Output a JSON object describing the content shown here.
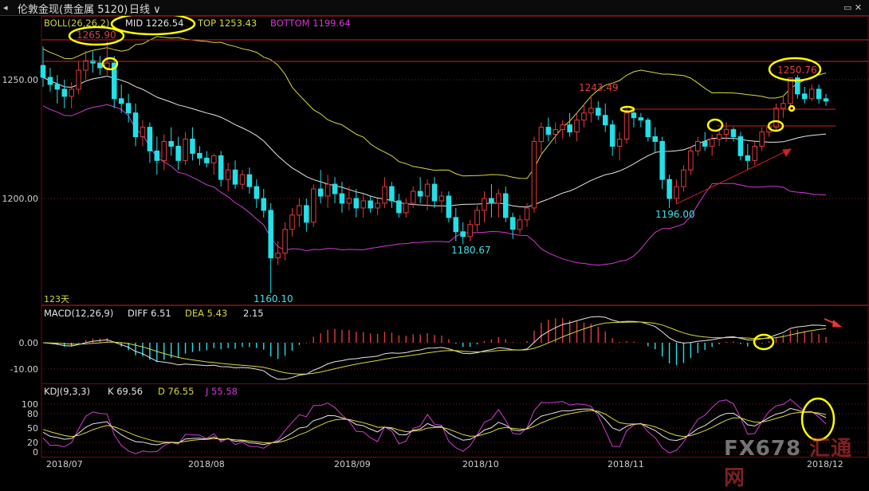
{
  "window": {
    "title": "伦敦金现(贵金属 5120)",
    "period": "日线",
    "icon_left": "arrow-icon",
    "icon_right": "window-controls-icon"
  },
  "colors": {
    "up": "#e23b3b",
    "down": "#22e0e8",
    "mid": "#e6e6e6",
    "top": "#d8d83a",
    "bottom": "#d23ad2",
    "grid": "#7a1f1f",
    "highlight": "#ffff00"
  },
  "boll_panel": {
    "legend": {
      "name": "BOLL(26,26,2)",
      "mid": "MID 1226.54",
      "top": "TOP 1253.43",
      "bottom": "BOTTOM 1199.64"
    },
    "yticks": [
      "1250.00",
      "1200.00"
    ],
    "days_label": "123天"
  },
  "macd_panel": {
    "legend": {
      "name": "MACD(12,26,9)",
      "diff": "DIFF 6.51",
      "dea": "DEA 5.43",
      "macd": "2.15"
    },
    "yticks": [
      "0.00",
      "-10.00"
    ]
  },
  "kdj_panel": {
    "legend": {
      "name": "KDJ(9,3,3)",
      "k": "K 69.56",
      "d": "D 76.55",
      "j": "J 55.58"
    },
    "yticks": [
      "100",
      "80",
      "50",
      "20",
      "0"
    ]
  },
  "xaxis": {
    "labels": [
      "2018/07",
      "2018/08",
      "2018/09",
      "2018/10",
      "2018/11",
      "2018/12"
    ]
  },
  "annotations": {
    "high_jul": "1265.90",
    "low_aug": "1160.10",
    "low_oct": "1180.67",
    "high_oct": "1243.49",
    "low_nov": "1196.00",
    "high_dec": "1250.76"
  },
  "watermark": {
    "brand": "FX678",
    "cn": "汇通网"
  },
  "chart_data": {
    "type": "candlestick",
    "symbol": "伦敦金现",
    "period": "日线",
    "candles_ohlc": [
      [
        1256,
        1264,
        1247,
        1251
      ],
      [
        1251,
        1255,
        1245,
        1248
      ],
      [
        1248,
        1252,
        1240,
        1246
      ],
      [
        1246,
        1250,
        1238,
        1243
      ],
      [
        1243,
        1249,
        1238,
        1246
      ],
      [
        1246,
        1258,
        1244,
        1254
      ],
      [
        1254,
        1262,
        1250,
        1258
      ],
      [
        1258,
        1262,
        1253,
        1257
      ],
      [
        1257,
        1260,
        1252,
        1255
      ],
      [
        1255,
        1265.9,
        1252,
        1257
      ],
      [
        1257,
        1260,
        1238,
        1242
      ],
      [
        1242,
        1248,
        1236,
        1240
      ],
      [
        1240,
        1244,
        1232,
        1236
      ],
      [
        1236,
        1240,
        1222,
        1226
      ],
      [
        1226,
        1233,
        1222,
        1230
      ],
      [
        1230,
        1232,
        1215,
        1220
      ],
      [
        1220,
        1226,
        1210,
        1216
      ],
      [
        1216,
        1227,
        1212,
        1224
      ],
      [
        1224,
        1230,
        1218,
        1222
      ],
      [
        1222,
        1226,
        1212,
        1216
      ],
      [
        1216,
        1228,
        1214,
        1225
      ],
      [
        1225,
        1230,
        1216,
        1219
      ],
      [
        1219,
        1222,
        1214,
        1217
      ],
      [
        1217,
        1220,
        1213,
        1215
      ],
      [
        1215,
        1219,
        1210,
        1218
      ],
      [
        1218,
        1220,
        1205,
        1208
      ],
      [
        1208,
        1215,
        1203,
        1212
      ],
      [
        1212,
        1216,
        1204,
        1206
      ],
      [
        1206,
        1212,
        1204,
        1210
      ],
      [
        1210,
        1213,
        1202,
        1205
      ],
      [
        1205,
        1208,
        1196,
        1200
      ],
      [
        1200,
        1204,
        1192,
        1195
      ],
      [
        1195,
        1198,
        1160.1,
        1175
      ],
      [
        1175,
        1182,
        1172,
        1177
      ],
      [
        1177,
        1190,
        1174,
        1187
      ],
      [
        1187,
        1196,
        1184,
        1193
      ],
      [
        1193,
        1200,
        1188,
        1197
      ],
      [
        1197,
        1200,
        1186,
        1190
      ],
      [
        1190,
        1206,
        1188,
        1204
      ],
      [
        1204,
        1212,
        1198,
        1201
      ],
      [
        1201,
        1210,
        1196,
        1206
      ],
      [
        1206,
        1209,
        1198,
        1202
      ],
      [
        1202,
        1207,
        1194,
        1198
      ],
      [
        1198,
        1205,
        1195,
        1200
      ],
      [
        1200,
        1204,
        1192,
        1196
      ],
      [
        1196,
        1202,
        1192,
        1199
      ],
      [
        1199,
        1201,
        1194,
        1196
      ],
      [
        1196,
        1200,
        1193,
        1198
      ],
      [
        1198,
        1209,
        1196,
        1205
      ],
      [
        1205,
        1207,
        1196,
        1199
      ],
      [
        1199,
        1202,
        1192,
        1194
      ],
      [
        1194,
        1200,
        1192,
        1198
      ],
      [
        1198,
        1205,
        1196,
        1203
      ],
      [
        1203,
        1209,
        1198,
        1201
      ],
      [
        1201,
        1208,
        1195,
        1206
      ],
      [
        1206,
        1209,
        1196,
        1199
      ],
      [
        1199,
        1203,
        1194,
        1201
      ],
      [
        1201,
        1203,
        1190,
        1192
      ],
      [
        1192,
        1196,
        1182,
        1186
      ],
      [
        1186,
        1190,
        1180.67,
        1184
      ],
      [
        1184,
        1191,
        1182,
        1189
      ],
      [
        1189,
        1197,
        1186,
        1195
      ],
      [
        1195,
        1203,
        1190,
        1200
      ],
      [
        1200,
        1206,
        1192,
        1198
      ],
      [
        1198,
        1204,
        1192,
        1202
      ],
      [
        1202,
        1205,
        1190,
        1192
      ],
      [
        1192,
        1194,
        1183,
        1187
      ],
      [
        1187,
        1193,
        1185,
        1191
      ],
      [
        1191,
        1198,
        1188,
        1196
      ],
      [
        1196,
        1226,
        1194,
        1224
      ],
      [
        1224,
        1232,
        1218,
        1230
      ],
      [
        1230,
        1234,
        1224,
        1227
      ],
      [
        1227,
        1232,
        1223,
        1229
      ],
      [
        1229,
        1233,
        1225,
        1231
      ],
      [
        1231,
        1236,
        1226,
        1228
      ],
      [
        1228,
        1236,
        1224,
        1233
      ],
      [
        1233,
        1240,
        1230,
        1236
      ],
      [
        1236,
        1243.49,
        1232,
        1238
      ],
      [
        1238,
        1241,
        1233,
        1235
      ],
      [
        1235,
        1240,
        1228,
        1231
      ],
      [
        1231,
        1233,
        1218,
        1222
      ],
      [
        1222,
        1228,
        1216,
        1225
      ],
      [
        1225,
        1239,
        1223,
        1236
      ],
      [
        1236,
        1238,
        1230,
        1234
      ],
      [
        1234,
        1236,
        1230,
        1233
      ],
      [
        1233,
        1234,
        1224,
        1226
      ],
      [
        1226,
        1230,
        1219,
        1224
      ],
      [
        1224,
        1226,
        1204,
        1208
      ],
      [
        1208,
        1210,
        1196,
        1200
      ],
      [
        1200,
        1208,
        1198,
        1205
      ],
      [
        1205,
        1214,
        1203,
        1212
      ],
      [
        1212,
        1222,
        1210,
        1220
      ],
      [
        1220,
        1226,
        1218,
        1224
      ],
      [
        1224,
        1228,
        1220,
        1222
      ],
      [
        1222,
        1227,
        1218,
        1225
      ],
      [
        1225,
        1229,
        1222,
        1227
      ],
      [
        1227,
        1232,
        1224,
        1229
      ],
      [
        1229,
        1230,
        1224,
        1226
      ],
      [
        1226,
        1228,
        1216,
        1218
      ],
      [
        1218,
        1223,
        1212,
        1216
      ],
      [
        1216,
        1224,
        1214,
        1222
      ],
      [
        1222,
        1230,
        1220,
        1228
      ],
      [
        1228,
        1232,
        1226,
        1230
      ],
      [
        1230,
        1240,
        1228,
        1238
      ],
      [
        1238,
        1243,
        1234,
        1240
      ],
      [
        1240,
        1248,
        1238,
        1250.76
      ],
      [
        1250.76,
        1252,
        1242,
        1244
      ],
      [
        1244,
        1247,
        1240,
        1242
      ],
      [
        1242,
        1248,
        1241,
        1246
      ],
      [
        1246,
        1248,
        1240,
        1242
      ],
      [
        1242,
        1244,
        1239,
        1241
      ]
    ],
    "boll_latest": {
      "mid": 1226.54,
      "top": 1253.43,
      "bottom": 1199.64
    },
    "macd_latest": {
      "diff": 6.51,
      "dea": 5.43,
      "macd": 2.15
    },
    "kdj_latest": {
      "k": 69.56,
      "d": 76.55,
      "j": 55.58
    },
    "price_range": [
      1155,
      1270
    ],
    "labels": {
      "high_jul": 1265.9,
      "low_aug": 1160.1,
      "low_oct": 1180.67,
      "high_oct": 1243.49,
      "low_nov": 1196.0,
      "high_dec": 1250.76
    },
    "x_labels": [
      "2018/07",
      "2018/08",
      "2018/09",
      "2018/10",
      "2018/11",
      "2018/12"
    ]
  }
}
